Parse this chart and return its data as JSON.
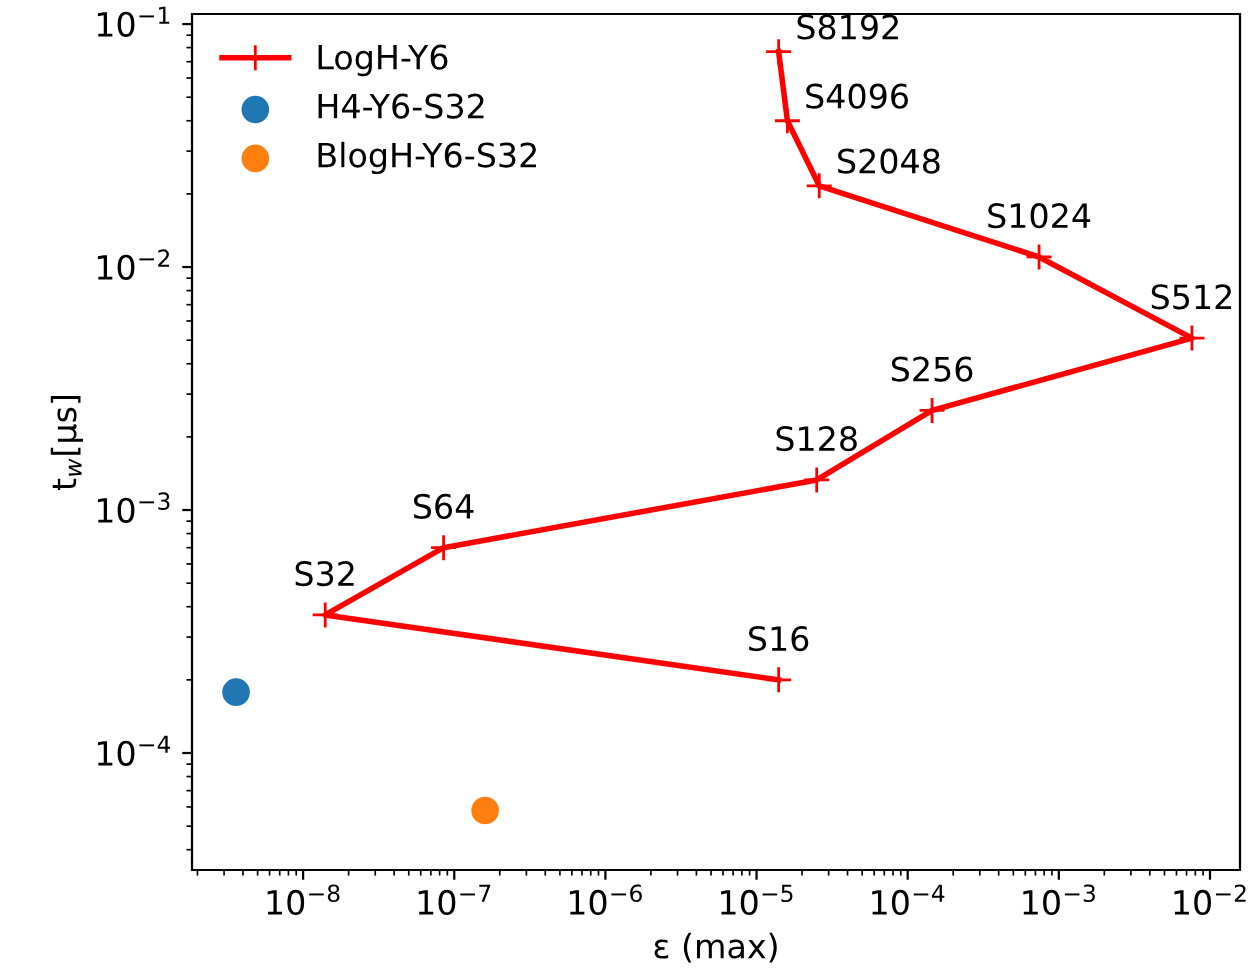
{
  "chart_data": {
    "type": "line",
    "xlabel": "ε (max)",
    "ylabel": "t$_{w}$[μs]",
    "log": "xy",
    "legend": "top left",
    "grid": false,
    "xlim": [
      1.84e-09,
      0.0158
    ],
    "ylim": [
      3.3e-05,
      0.11
    ],
    "xticks": [
      {
        "value": 1e-08,
        "label": "10$^{−8}$"
      },
      {
        "value": 1e-07,
        "label": "10$^{−7}$"
      },
      {
        "value": 1e-06,
        "label": "10$^{−6}$"
      },
      {
        "value": 1e-05,
        "label": "10$^{−5}$"
      },
      {
        "value": 0.0001,
        "label": "10$^{−4}$"
      },
      {
        "value": 0.001,
        "label": "10$^{−3}$"
      },
      {
        "value": 0.01,
        "label": "10$^{−2}$"
      }
    ],
    "yticks": [
      {
        "value": 0.0001,
        "label": "10$^{−4}$"
      },
      {
        "value": 0.001,
        "label": "10$^{−3}$"
      },
      {
        "value": 0.01,
        "label": "10$^{−2}$"
      },
      {
        "value": 0.1,
        "label": "10$^{−1}$"
      }
    ],
    "series": [
      {
        "name": "LogH-Y6",
        "color": "#ff0000",
        "marker": "cross",
        "x": [
          1.4e-05,
          1.4e-08,
          8.5e-08,
          2.5e-05,
          0.000145,
          0.0076,
          0.00074,
          2.6e-05,
          1.6e-05,
          1.4e-05
        ],
        "values": [
          0.0002,
          0.00037,
          0.0007,
          0.00133,
          0.00257,
          0.0051,
          0.011,
          0.0216,
          0.04,
          0.077
        ]
      },
      {
        "name": "H4-Y6-S32",
        "type": "scatter",
        "color": "#1f77b4",
        "marker": "circle",
        "x": [
          3.6e-09
        ],
        "values": [
          0.000178
        ]
      },
      {
        "name": "BlogH-Y6-S32",
        "type": "scatter",
        "color": "#ff7f0e",
        "marker": "circle",
        "x": [
          1.6e-07
        ],
        "values": [
          5.8e-05
        ]
      }
    ],
    "annotations": [
      {
        "text": "S16",
        "x": 1.4e-05,
        "y": 0.0002
      },
      {
        "text": "S32",
        "x": 1.4e-08,
        "y": 0.00037
      },
      {
        "text": "S64",
        "x": 8.5e-08,
        "y": 0.0007
      },
      {
        "text": "S128",
        "x": 2.5e-05,
        "y": 0.00133
      },
      {
        "text": "S256",
        "x": 0.000145,
        "y": 0.00257
      },
      {
        "text": "S512",
        "x": 0.0076,
        "y": 0.0051
      },
      {
        "text": "S1024",
        "x": 0.00074,
        "y": 0.011
      },
      {
        "text": "S2048",
        "x": 2.6e-05,
        "y": 0.0216
      },
      {
        "text": "S4096",
        "x": 1.6e-05,
        "y": 0.04
      },
      {
        "text": "S8192",
        "x": 1.4e-05,
        "y": 0.077
      }
    ]
  }
}
